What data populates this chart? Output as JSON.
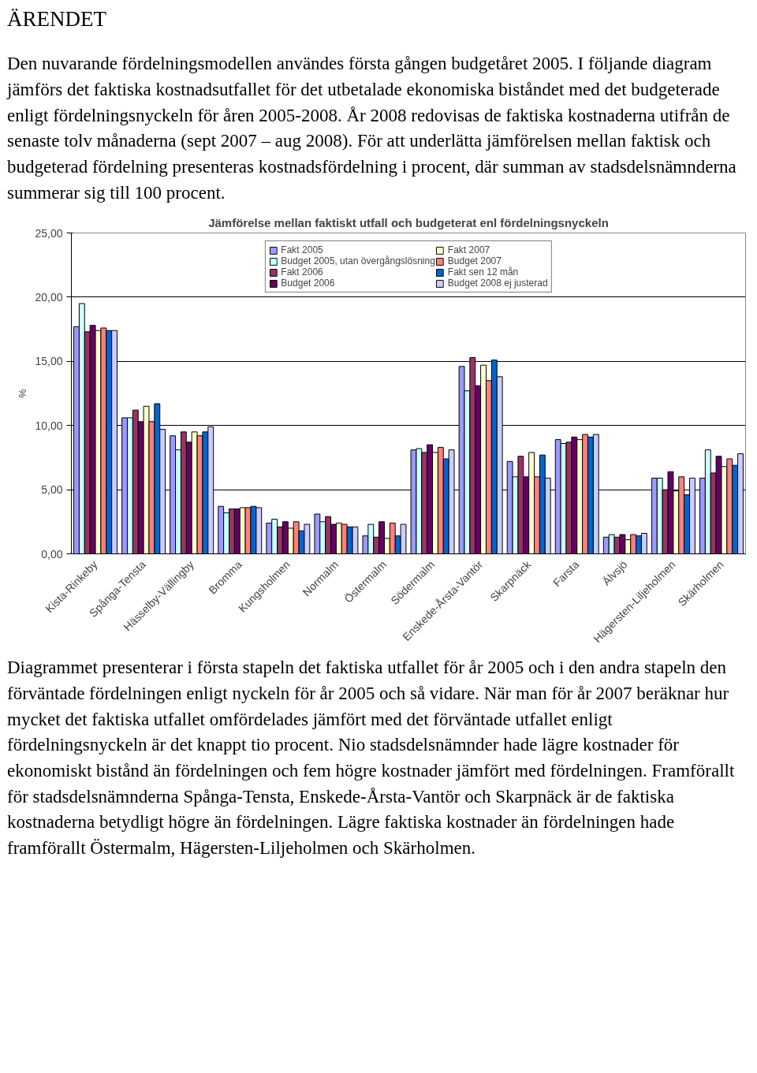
{
  "chart_data": {
    "type": "bar",
    "title": "Jämförelse mellan faktiskt utfall och budgeterat enl fördelningsnyckeln",
    "ylabel": "%",
    "categories": [
      "Kista-Rinkeby",
      "Spånga-Tensta",
      "Hässelby-Vällingby",
      "Bromma",
      "Kungsholmen",
      "Normalm",
      "Östermalm",
      "Södermalm",
      "Enskede-Årsta-Vantör",
      "Skarpnäck",
      "Farsta",
      "Älvsjö",
      "Hägersten-Liljeholmen",
      "Skärholmen"
    ],
    "series": [
      {
        "name": "Fakt 2005",
        "color": "#9999ff",
        "values": [
          17.7,
          10.6,
          9.2,
          3.7,
          2.4,
          3.1,
          1.4,
          8.1,
          14.6,
          7.2,
          8.9,
          1.3,
          5.9,
          5.9
        ]
      },
      {
        "name": "Budget 2005, utan övergångslösning",
        "color": "#ccffff",
        "values": [
          19.5,
          10.6,
          8.1,
          3.2,
          2.7,
          2.5,
          2.3,
          8.2,
          12.7,
          6.0,
          8.6,
          1.5,
          5.9,
          8.1
        ]
      },
      {
        "name": "Fakt 2006",
        "color": "#993366",
        "values": [
          17.3,
          11.2,
          9.5,
          3.5,
          2.1,
          2.9,
          1.3,
          7.9,
          15.3,
          7.6,
          8.7,
          1.3,
          5.0,
          6.3
        ]
      },
      {
        "name": "Budget 2006",
        "color": "#660066",
        "values": [
          17.8,
          10.3,
          8.7,
          3.5,
          2.5,
          2.3,
          2.5,
          8.5,
          13.1,
          6.0,
          9.1,
          1.5,
          6.4,
          7.6
        ]
      },
      {
        "name": "Fakt 2007",
        "color": "#ffffcc",
        "values": [
          17.4,
          11.5,
          9.5,
          3.6,
          2.0,
          2.4,
          1.2,
          7.9,
          14.7,
          7.9,
          8.9,
          1.1,
          4.9,
          6.8
        ]
      },
      {
        "name": "Budget 2007",
        "color": "#ff8080",
        "values": [
          17.6,
          10.3,
          9.2,
          3.6,
          2.5,
          2.3,
          2.4,
          8.3,
          13.5,
          6.0,
          9.3,
          1.5,
          6.0,
          7.4
        ]
      },
      {
        "name": "Fakt sen 12 mån",
        "color": "#0066cc",
        "values": [
          17.4,
          11.7,
          9.5,
          3.7,
          1.8,
          2.1,
          1.4,
          7.4,
          15.1,
          7.7,
          9.1,
          1.4,
          4.6,
          6.9
        ]
      },
      {
        "name": "Budget 2008 ej justerad",
        "color": "#ccccff",
        "values": [
          17.4,
          9.7,
          9.9,
          3.6,
          2.3,
          2.1,
          2.3,
          8.1,
          13.8,
          5.9,
          9.3,
          1.6,
          5.9,
          7.8
        ]
      }
    ],
    "ylim": [
      0,
      25
    ],
    "yticks": [
      {
        "value": 0,
        "label": "0,00"
      },
      {
        "value": 5,
        "label": "5,00"
      },
      {
        "value": 10,
        "label": "10,00"
      },
      {
        "value": 15,
        "label": "15,00"
      },
      {
        "value": 20,
        "label": "20,00"
      },
      {
        "value": 25,
        "label": "25,00"
      }
    ],
    "grid": "y",
    "legend": "top",
    "annotations": [
      "ÄRENDET",
      "Den nuvarande fördelningsmodellen användes första gången budgetåret 2005. I följande diagram jämförs det faktiska kostnadsutfallet för det utbetalade ekonomiska biståndet med det budgeterade enligt fördelningsnyckeln för åren 2005-2008. År 2008 redovisas de faktiska kostnaderna utifrån de senaste tolv månaderna (sept 2007 – aug 2008). För att underlätta jämförelsen mellan faktisk och budgeterad fördelning presenteras kostnadsfördelning i procent, där summan av stadsdelsnämnderna summerar sig till 100 procent.",
      "Diagrammet presenterar i första stapeln det faktiska utfallet för år 2005 och i den andra stapeln den förväntade fördelningen enligt nyckeln för år 2005 och så vidare. När man för år 2007 beräknar hur mycket det faktiska utfallet omfördelades jämfört med det förväntade utfallet enligt fördelningsnyckeln är det knappt tio procent. Nio stadsdelsnämnder hade lägre kostnader för ekonomiskt bistånd än fördelningen och fem högre kostnader jämfört med fördelningen. Framförallt för stadsdelsnämnderna Spånga-Tensta, Enskede-Årsta-Vantör och Skarpnäck är de faktiska kostnaderna betydligt högre än fördelningen. Lägre faktiska kostnader än fördelningen hade framförallt Östermalm, Hägersten-Liljeholmen och Skärholmen."
    ]
  }
}
